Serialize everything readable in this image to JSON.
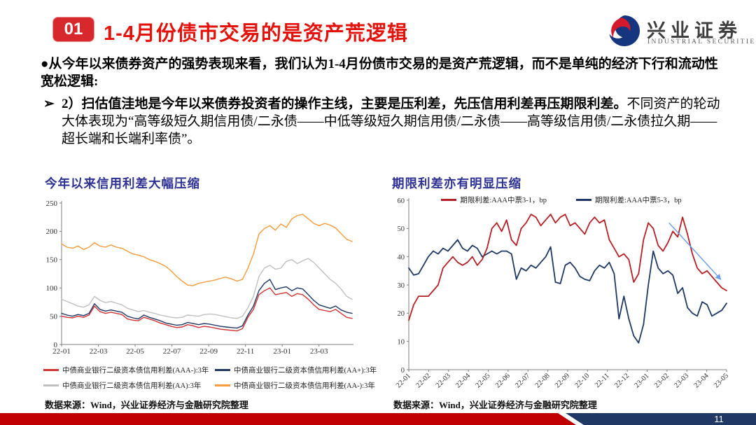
{
  "header": {
    "badge": "01",
    "title": "1-4月份债市交易的是资产荒逻辑"
  },
  "logo": {
    "name_cn": "兴业证券",
    "name_en": "INDUSTRIAL SECURITIES"
  },
  "body": {
    "paragraph1": "●从今年以来债券资产的强势表现来看，我们认为1-4月份债市交易的是资产荒逻辑，而不是单纯的经济下行和流动性宽松逻辑:",
    "paragraph2_marker": "➢",
    "paragraph2_bold": "2）扫估值洼地是今年以来债券投资者的操作主线，主要是压利差，先压信用利差再压期限利差。",
    "paragraph2_regular": "不同资产的轮动大体表现为“高等级短久期信用债/二永债——中低等级短久期信用债/二永债——高等级信用债/二永债拉久期——超长端和长端利率债”。"
  },
  "colors": {
    "title_red": "#e3120b",
    "badge_red": "#d7282d",
    "chart_title_blue": "#2e3192",
    "footer_red": "#c00000",
    "footer_navy": "#1f3864",
    "axis_gray": "#7f7f7f"
  },
  "chart_data": [
    {
      "type": "line",
      "title": "今年以来信用利差大幅压缩",
      "source": "数据来源：Wind，兴业证券经济与金融研究院整理",
      "ylim": [
        0,
        250
      ],
      "yticks": [
        0,
        50,
        100,
        150,
        200,
        250
      ],
      "x_total_months": 15.8,
      "xticks": [
        {
          "label": "22-01",
          "month": 0
        },
        {
          "label": "22-03",
          "month": 2
        },
        {
          "label": "22-05",
          "month": 4
        },
        {
          "label": "22-07",
          "month": 6
        },
        {
          "label": "22-09",
          "month": 8
        },
        {
          "label": "22-11",
          "month": 10
        },
        {
          "label": "23-01",
          "month": 12
        },
        {
          "label": "23-03",
          "month": 14
        }
      ],
      "grid": false,
      "legend_position": "bottom",
      "draw_order": [
        2,
        3,
        1,
        0
      ],
      "series": [
        {
          "name": "中债商业银行二级资本债信用利差(AAA-):3年",
          "color": "#d03434",
          "values": [
            50,
            48,
            47,
            50,
            48,
            52,
            68,
            58,
            55,
            57,
            55,
            53,
            45,
            43,
            42,
            48,
            45,
            42,
            38,
            35,
            32,
            30,
            31,
            35,
            33,
            30,
            32,
            31,
            29,
            27,
            26,
            25,
            24,
            28,
            48,
            62,
            88,
            95,
            100,
            88,
            90,
            92,
            85,
            90,
            88,
            80,
            70,
            62,
            60,
            58,
            62,
            55,
            48,
            46
          ]
        },
        {
          "name": "中债商业银行二级资本债信用利差(AA+):3年",
          "color": "#1f3864",
          "values": [
            55,
            52,
            50,
            53,
            51,
            55,
            72,
            62,
            59,
            61,
            59,
            57,
            50,
            47,
            45,
            52,
            48,
            45,
            42,
            38,
            36,
            34,
            35,
            39,
            37,
            35,
            37,
            36,
            34,
            32,
            31,
            30,
            29,
            33,
            52,
            68,
            95,
            108,
            115,
            97,
            100,
            102,
            95,
            100,
            98,
            88,
            78,
            70,
            67,
            64,
            68,
            61,
            57,
            55
          ]
        },
        {
          "name": "中债商业银行二级资本债信用利差(AA):3年",
          "color": "#c0c0c0",
          "values": [
            80,
            76,
            72,
            68,
            66,
            70,
            85,
            78,
            74,
            76,
            73,
            70,
            64,
            61,
            58,
            60,
            57,
            55,
            52,
            50,
            48,
            47,
            48,
            52,
            51,
            50,
            53,
            54,
            53,
            51,
            49,
            47,
            46,
            50,
            65,
            85,
            120,
            135,
            140,
            133,
            135,
            147,
            150,
            143,
            148,
            152,
            145,
            135,
            125,
            115,
            108,
            98,
            85,
            80
          ]
        },
        {
          "name": "中债商业银行二级资本债信用利差(AA-):3年",
          "color": "#f79b3c",
          "values": [
            178,
            172,
            170,
            174,
            168,
            172,
            180,
            174,
            172,
            176,
            172,
            170,
            165,
            160,
            158,
            155,
            150,
            147,
            143,
            138,
            130,
            120,
            112,
            105,
            104,
            108,
            110,
            112,
            114,
            117,
            119,
            116,
            112,
            115,
            135,
            160,
            195,
            205,
            210,
            202,
            213,
            207,
            222,
            228,
            230,
            222,
            214,
            210,
            214,
            211,
            206,
            196,
            186,
            182
          ]
        }
      ]
    },
    {
      "type": "line",
      "title": "期限利差亦有明显压缩",
      "source": "数据来源：Wind，兴业证券经济与金融研究院整理",
      "ylim": [
        0,
        60
      ],
      "yticks": [
        0,
        10,
        20,
        30,
        40,
        50,
        60
      ],
      "x_total_months": 16,
      "xticks": [
        {
          "label": "22-01",
          "month": 0
        },
        {
          "label": "22-02",
          "month": 1
        },
        {
          "label": "22-03",
          "month": 2
        },
        {
          "label": "22-04",
          "month": 3
        },
        {
          "label": "22-05",
          "month": 4
        },
        {
          "label": "22-06",
          "month": 5
        },
        {
          "label": "22-07",
          "month": 6
        },
        {
          "label": "22-08",
          "month": 7
        },
        {
          "label": "22-09",
          "month": 8
        },
        {
          "label": "22-10",
          "month": 9
        },
        {
          "label": "22-11",
          "month": 10
        },
        {
          "label": "22-12",
          "month": 11
        },
        {
          "label": "23-01",
          "month": 12
        },
        {
          "label": "23-02",
          "month": 13
        },
        {
          "label": "23-03",
          "month": 14
        },
        {
          "label": "23-04",
          "month": 15
        },
        {
          "label": "23-05",
          "month": 16
        }
      ],
      "grid": false,
      "legend_position": "top",
      "draw_order": [
        1,
        0
      ],
      "series": [
        {
          "name": "期限利差:AAA中票3-1，bp",
          "color": "#b42025",
          "values": [
            17.5,
            23,
            26,
            26,
            26,
            28,
            30,
            36,
            38,
            40,
            38,
            37,
            38,
            40,
            37,
            39,
            43,
            50,
            52,
            49,
            53,
            46,
            44,
            50,
            52,
            55,
            54,
            51,
            53,
            55,
            52,
            54,
            55,
            51,
            52,
            50,
            48,
            52,
            54,
            52,
            53,
            46,
            43,
            40,
            41,
            39,
            31,
            34,
            46,
            52,
            50,
            44,
            42,
            45,
            49,
            47,
            54,
            48,
            41,
            36,
            34,
            35,
            33,
            31,
            29,
            28
          ]
        },
        {
          "name": "期限利差:AAA中票5-3，bp",
          "color": "#1f3864",
          "values": [
            36,
            33.5,
            34,
            37,
            40,
            42,
            41,
            43,
            42,
            44,
            46,
            43,
            42,
            44,
            43,
            40,
            41,
            42,
            41,
            42,
            42,
            41,
            32,
            36,
            35,
            37,
            36,
            38,
            40,
            43.5,
            31,
            30.5,
            37,
            38,
            36,
            33,
            32,
            31.5,
            35,
            37,
            36,
            38,
            34,
            18,
            26,
            18,
            12,
            9.5,
            16,
            30,
            42,
            36,
            34,
            35,
            33.5,
            27,
            29,
            22,
            20,
            19,
            24,
            23,
            19,
            20,
            21,
            23.5
          ]
        }
      ],
      "annotation_arrow": {
        "x_month_from": 13.1,
        "value_from": 52,
        "x_month_to": 15.7,
        "value_to": 32,
        "color": "#6d9eeb"
      }
    }
  ],
  "footer": {
    "page_number": "11"
  }
}
